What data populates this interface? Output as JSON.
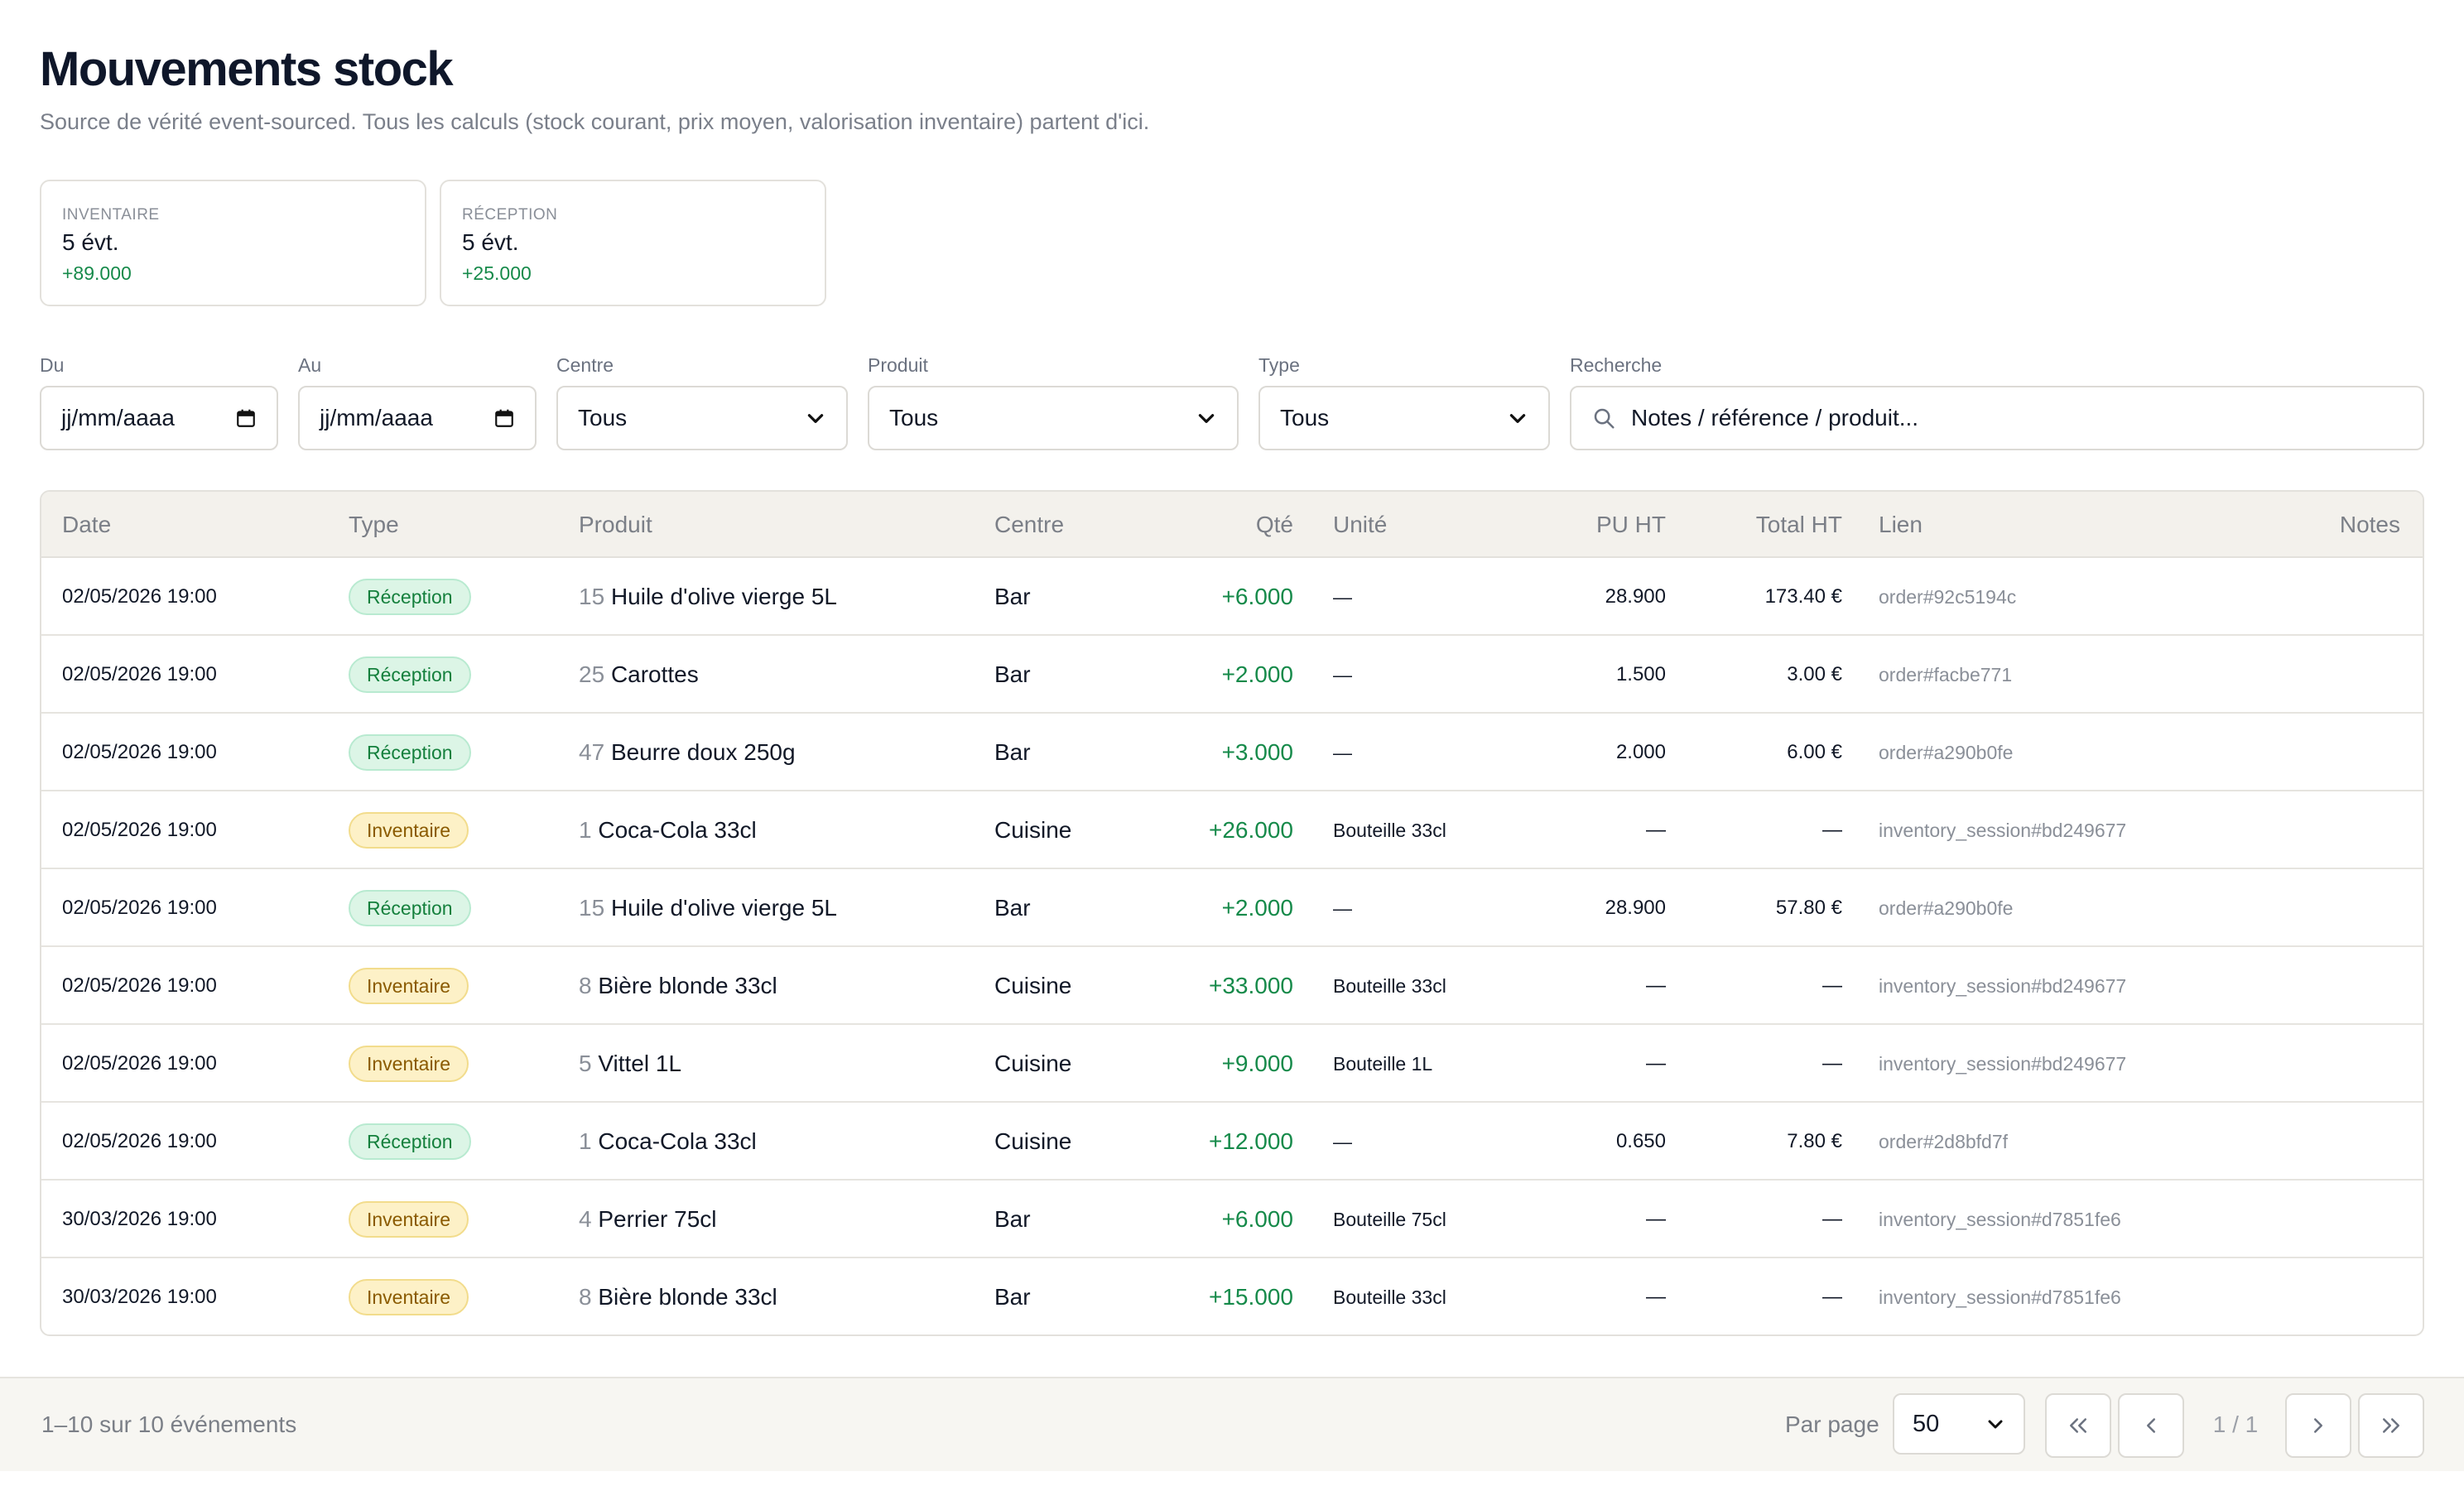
{
  "header": {
    "title": "Mouvements stock",
    "subtitle": "Source de vérité event-sourced. Tous les calculs (stock courant, prix moyen, valorisation inventaire) partent d'ici."
  },
  "stats": [
    {
      "label": "INVENTAIRE",
      "value": "5 évt.",
      "delta": "+89.000"
    },
    {
      "label": "RÉCEPTION",
      "value": "5 évt.",
      "delta": "+25.000"
    }
  ],
  "filters": {
    "du": {
      "label": "Du",
      "value": "jj/mm/aaaa"
    },
    "au": {
      "label": "Au",
      "value": "jj/mm/aaaa"
    },
    "centre": {
      "label": "Centre",
      "value": "Tous"
    },
    "produit": {
      "label": "Produit",
      "value": "Tous"
    },
    "type": {
      "label": "Type",
      "value": "Tous"
    },
    "recherche": {
      "label": "Recherche",
      "placeholder": "Notes / référence / produit..."
    }
  },
  "table": {
    "columns": [
      "Date",
      "Type",
      "Produit",
      "Centre",
      "Qté",
      "Unité",
      "PU HT",
      "Total HT",
      "Lien",
      "Notes"
    ],
    "rows": [
      {
        "date": "02/05/2026 19:00",
        "type": "Réception",
        "kind": "rec",
        "pid": "15",
        "produit": "Huile d'olive vierge 5L",
        "centre": "Bar",
        "qty": "+6.000",
        "unite": "—",
        "pu": "28.900",
        "total": "173.40 €",
        "lien": "order#92c5194c",
        "notes": ""
      },
      {
        "date": "02/05/2026 19:00",
        "type": "Réception",
        "kind": "rec",
        "pid": "25",
        "produit": "Carottes",
        "centre": "Bar",
        "qty": "+2.000",
        "unite": "—",
        "pu": "1.500",
        "total": "3.00 €",
        "lien": "order#facbe771",
        "notes": ""
      },
      {
        "date": "02/05/2026 19:00",
        "type": "Réception",
        "kind": "rec",
        "pid": "47",
        "produit": "Beurre doux 250g",
        "centre": "Bar",
        "qty": "+3.000",
        "unite": "—",
        "pu": "2.000",
        "total": "6.00 €",
        "lien": "order#a290b0fe",
        "notes": ""
      },
      {
        "date": "02/05/2026 19:00",
        "type": "Inventaire",
        "kind": "inv",
        "pid": "1",
        "produit": "Coca-Cola 33cl",
        "centre": "Cuisine",
        "qty": "+26.000",
        "unite": "Bouteille 33cl",
        "pu": "—",
        "total": "—",
        "lien": "inventory_session#bd249677",
        "notes": ""
      },
      {
        "date": "02/05/2026 19:00",
        "type": "Réception",
        "kind": "rec",
        "pid": "15",
        "produit": "Huile d'olive vierge 5L",
        "centre": "Bar",
        "qty": "+2.000",
        "unite": "—",
        "pu": "28.900",
        "total": "57.80 €",
        "lien": "order#a290b0fe",
        "notes": ""
      },
      {
        "date": "02/05/2026 19:00",
        "type": "Inventaire",
        "kind": "inv",
        "pid": "8",
        "produit": "Bière blonde 33cl",
        "centre": "Cuisine",
        "qty": "+33.000",
        "unite": "Bouteille 33cl",
        "pu": "—",
        "total": "—",
        "lien": "inventory_session#bd249677",
        "notes": ""
      },
      {
        "date": "02/05/2026 19:00",
        "type": "Inventaire",
        "kind": "inv",
        "pid": "5",
        "produit": "Vittel 1L",
        "centre": "Cuisine",
        "qty": "+9.000",
        "unite": "Bouteille 1L",
        "pu": "—",
        "total": "—",
        "lien": "inventory_session#bd249677",
        "notes": ""
      },
      {
        "date": "02/05/2026 19:00",
        "type": "Réception",
        "kind": "rec",
        "pid": "1",
        "produit": "Coca-Cola 33cl",
        "centre": "Cuisine",
        "qty": "+12.000",
        "unite": "—",
        "pu": "0.650",
        "total": "7.80 €",
        "lien": "order#2d8bfd7f",
        "notes": ""
      },
      {
        "date": "30/03/2026 19:00",
        "type": "Inventaire",
        "kind": "inv",
        "pid": "4",
        "produit": "Perrier 75cl",
        "centre": "Bar",
        "qty": "+6.000",
        "unite": "Bouteille 75cl",
        "pu": "—",
        "total": "—",
        "lien": "inventory_session#d7851fe6",
        "notes": ""
      },
      {
        "date": "30/03/2026 19:00",
        "type": "Inventaire",
        "kind": "inv",
        "pid": "8",
        "produit": "Bière blonde 33cl",
        "centre": "Bar",
        "qty": "+15.000",
        "unite": "Bouteille 33cl",
        "pu": "—",
        "total": "—",
        "lien": "inventory_session#d7851fe6",
        "notes": ""
      }
    ]
  },
  "footer": {
    "count_text": "1–10 sur 10 événements",
    "per_page_label": "Par page",
    "per_page_value": "50",
    "page_info": "1 / 1",
    "icons": {
      "first": "double-chevron-left-icon",
      "prev": "chevron-left-icon",
      "next": "chevron-right-icon",
      "last": "double-chevron-right-icon"
    }
  },
  "colors": {
    "accent_green": "#168a4a",
    "badge_reception_bg": "#dcf5e6",
    "badge_inventaire_bg": "#fdf1c7",
    "header_bg": "#f3f1ec"
  }
}
